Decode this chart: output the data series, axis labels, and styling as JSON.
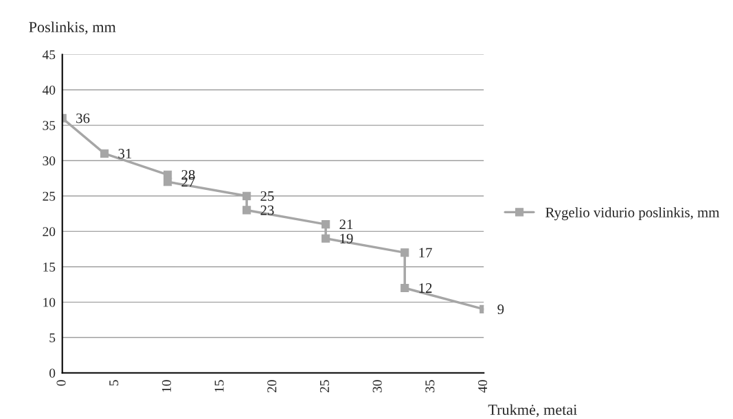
{
  "chart_data": {
    "type": "line",
    "xlabel": "Trukmė, metai",
    "ylabel": "Poslinkis, mm",
    "x": [
      0,
      4,
      10,
      10,
      17.5,
      17.5,
      25,
      25,
      32.5,
      32.5,
      40
    ],
    "series": [
      {
        "name": "Rygelio vidurio poslinkis, mm",
        "color": "#a6a6a6",
        "values": [
          36,
          31,
          28,
          27,
          25,
          23,
          21,
          19,
          17,
          12,
          9
        ]
      }
    ],
    "xlim": [
      0,
      40
    ],
    "xticks": [
      0,
      5,
      10,
      15,
      20,
      25,
      30,
      35,
      40
    ],
    "ylim": [
      0,
      45
    ],
    "yticks": [
      0,
      5,
      10,
      15,
      20,
      25,
      30,
      35,
      40,
      45
    ],
    "grid": "y",
    "legend": "right",
    "marker": "square",
    "line_style": "solid",
    "data_labels": true
  }
}
